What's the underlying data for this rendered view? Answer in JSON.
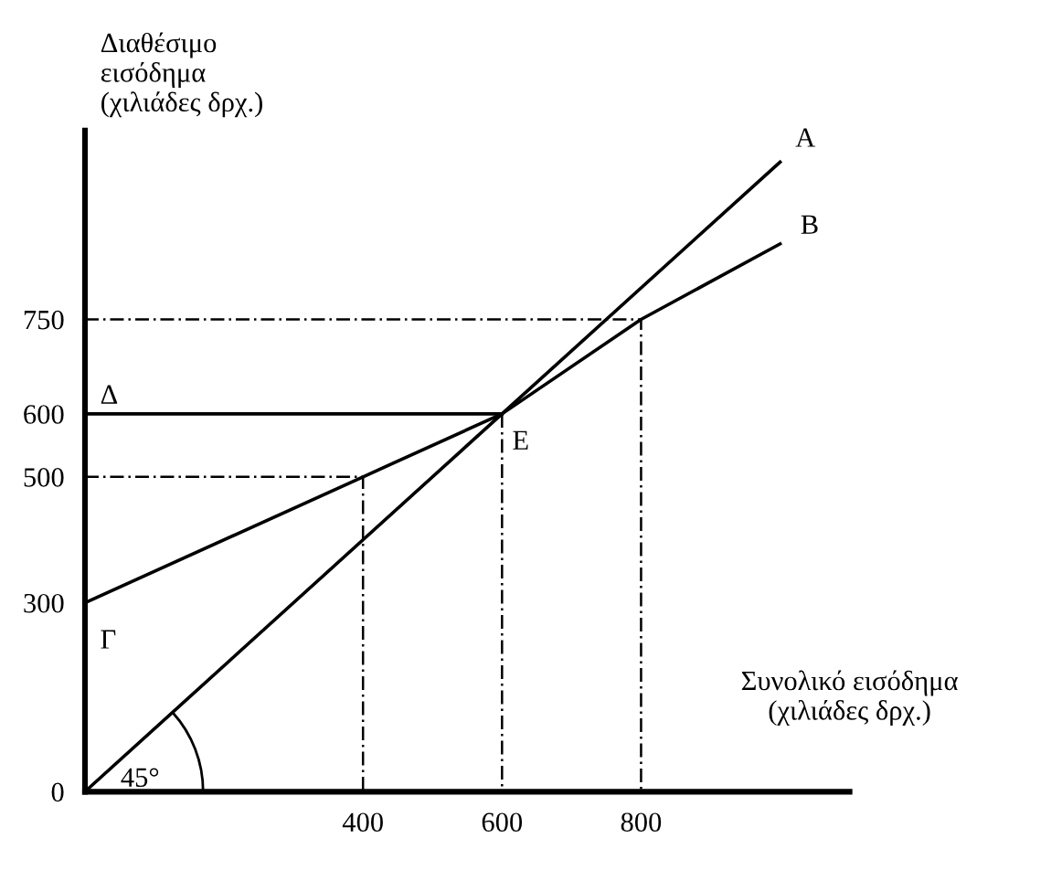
{
  "chart_data": {
    "type": "line",
    "xlabel": "Συνολικό εισόδημα\n(χιλιάδες δρχ.)",
    "ylabel": "Διαθέσιμο\nεισόδημα\n(χιλιάδες δρχ.)",
    "xlim": [
      0,
      1100
    ],
    "ylim": [
      0,
      1050
    ],
    "xticks": [
      400,
      600,
      800
    ],
    "yticks": [
      0,
      300,
      500,
      600,
      750
    ],
    "grid": false,
    "marker": "none",
    "series": [
      {
        "x": [
          0,
          1000
        ],
        "values": [
          0,
          1000
        ],
        "color": "#000000",
        "line_style": "solid"
      },
      {
        "x": [
          0,
          400,
          600,
          800,
          1000
        ],
        "values": [
          300,
          500,
          600,
          750,
          870
        ],
        "color": "#000000",
        "line_style": "solid"
      },
      {
        "x": [
          0,
          600
        ],
        "values": [
          600,
          600
        ],
        "color": "#000000",
        "line_style": "solid"
      },
      {
        "x": [
          0,
          400,
          400
        ],
        "values": [
          500,
          500,
          0
        ],
        "color": "#000000",
        "line_style": "dashed"
      },
      {
        "x": [
          600,
          600
        ],
        "values": [
          600,
          0
        ],
        "color": "#000000",
        "line_style": "dashed"
      },
      {
        "x": [
          0,
          800,
          800
        ],
        "values": [
          750,
          750,
          0
        ],
        "color": "#000000",
        "line_style": "dashed"
      }
    ],
    "annotations": [
      {
        "text": "A",
        "x": 1000,
        "y": 1000
      },
      {
        "text": "B",
        "x": 1000,
        "y": 870
      },
      {
        "text": "Γ",
        "x": 0,
        "y": 300
      },
      {
        "text": "Δ",
        "x": 0,
        "y": 600
      },
      {
        "text": "E",
        "x": 600,
        "y": 600
      },
      {
        "text": "45°",
        "x": 0,
        "y": 0
      }
    ]
  }
}
